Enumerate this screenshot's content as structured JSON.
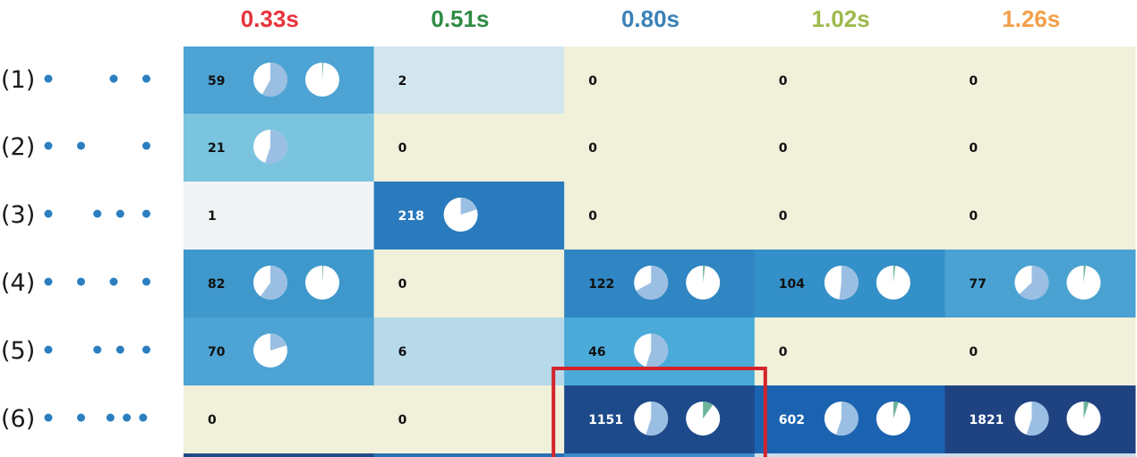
{
  "chart_data": {
    "type": "heatmap",
    "columns": [
      "0.33s",
      "0.51s",
      "0.80s",
      "1.02s",
      "1.26s"
    ],
    "column_colors": [
      "#e8333c",
      "#2f8b45",
      "#3a82b8",
      "#9eba4e",
      "#f3a04a"
    ],
    "rows": [
      "(1)",
      "(2)",
      "(3)",
      "(4)",
      "(5)",
      "(6)"
    ],
    "row_patterns": [
      [
        0,
        2,
        3
      ],
      [
        0,
        1,
        3
      ],
      [
        0,
        1.5,
        2.2,
        3
      ],
      [
        0,
        1,
        2,
        3
      ],
      [
        0,
        1.5,
        2.2,
        3
      ],
      [
        0,
        1,
        1.9,
        2.4,
        2.9
      ]
    ],
    "values": [
      [
        59,
        2,
        0,
        0,
        0
      ],
      [
        21,
        0,
        0,
        0,
        0
      ],
      [
        1,
        218,
        0,
        0,
        0
      ],
      [
        82,
        0,
        122,
        104,
        77
      ],
      [
        70,
        6,
        46,
        0,
        0
      ],
      [
        0,
        0,
        1151,
        602,
        1821
      ]
    ],
    "cell_colors": [
      [
        "#4da3d3",
        "#d3e6f0",
        "#f1f0da",
        "#f1f0da",
        "#f1f0da"
      ],
      [
        "#7ac4df",
        "#f1f0da",
        "#f1f0da",
        "#f1f0da",
        "#f1f0da"
      ],
      [
        "#f1f4f4",
        "#2a7bbd",
        "#f1f0da",
        "#f1f0da",
        "#f1f0da"
      ],
      [
        "#3f98cc",
        "#f1f0da",
        "#2f86c2",
        "#3490c8",
        "#4aa2d2"
      ],
      [
        "#4da3d3",
        "#b8d9ea",
        "#4aaad8",
        "#f1f0da",
        "#f1f0da"
      ],
      [
        "#f1f0da",
        "#f1f0da",
        "#1d4a8a",
        "#1b63b0",
        "#1f4281"
      ]
    ],
    "pies": [
      [
        [
          0.58,
          0.01
        ],
        [],
        [],
        [],
        []
      ],
      [
        [
          0.55
        ],
        [],
        [],
        [],
        []
      ],
      [
        [],
        [
          0.2
        ],
        [],
        [],
        []
      ],
      [
        [
          0.6,
          0.01
        ],
        [],
        [
          0.67,
          0.02
        ],
        [
          0.52,
          0.02
        ],
        [
          0.63,
          0.02
        ]
      ],
      [
        [
          0.2
        ],
        [],
        [
          0.55
        ],
        [],
        []
      ],
      [
        [],
        [],
        [
          0.55,
          0.1
        ],
        [
          0.55,
          0.05
        ],
        [
          0.55,
          0.05
        ]
      ]
    ],
    "highlight_cell": [
      5,
      2
    ],
    "highlight_color": "#d4232b",
    "pie_fill_color": "#9bbfe2",
    "pie_secondary_color": "#6db39b",
    "dot_color": "#2b7fc0"
  }
}
